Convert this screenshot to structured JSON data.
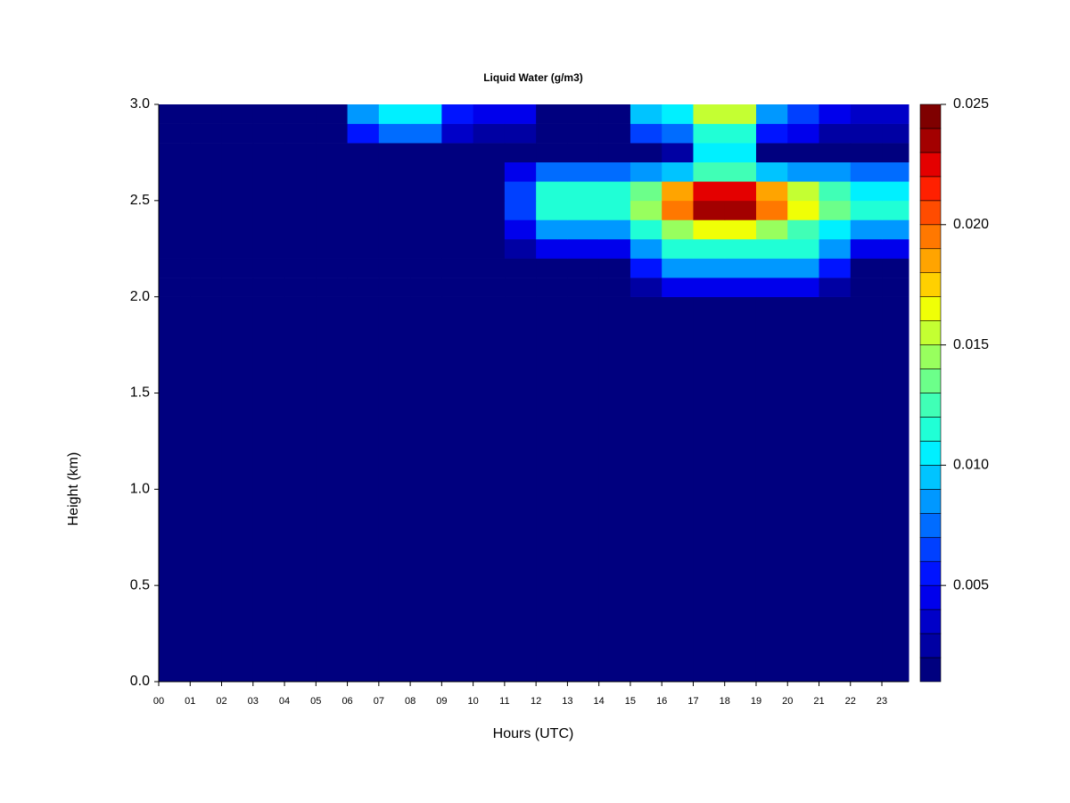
{
  "chart_data": {
    "type": "heatmap",
    "title": "Liquid Water (g/m3)",
    "xlabel": "Hours (UTC)",
    "ylabel": "Height (km)",
    "x": [
      0,
      1,
      2,
      3,
      4,
      5,
      6,
      7,
      8,
      9,
      10,
      11,
      12,
      13,
      14,
      15,
      16,
      17,
      18,
      19,
      20,
      21,
      22,
      23,
      23.85
    ],
    "y": [
      0,
      2.0,
      2.1,
      2.2,
      2.3,
      2.4,
      2.5,
      2.6,
      2.7,
      2.8,
      2.9,
      3.0
    ],
    "xlim": [
      0,
      23.85
    ],
    "ylim": [
      0,
      3
    ],
    "xticks": [
      {
        "value": 0,
        "label": "00"
      },
      {
        "value": 1,
        "label": "01"
      },
      {
        "value": 2,
        "label": "02"
      },
      {
        "value": 3,
        "label": "03"
      },
      {
        "value": 4,
        "label": "04"
      },
      {
        "value": 5,
        "label": "05"
      },
      {
        "value": 6,
        "label": "06"
      },
      {
        "value": 7,
        "label": "07"
      },
      {
        "value": 8,
        "label": "08"
      },
      {
        "value": 9,
        "label": "09"
      },
      {
        "value": 10,
        "label": "10"
      },
      {
        "value": 11,
        "label": "11"
      },
      {
        "value": 12,
        "label": "12"
      },
      {
        "value": 13,
        "label": "13"
      },
      {
        "value": 14,
        "label": "14"
      },
      {
        "value": 15,
        "label": "15"
      },
      {
        "value": 16,
        "label": "16"
      },
      {
        "value": 17,
        "label": "17"
      },
      {
        "value": 18,
        "label": "18"
      },
      {
        "value": 19,
        "label": "19"
      },
      {
        "value": 20,
        "label": "20"
      },
      {
        "value": 21,
        "label": "21"
      },
      {
        "value": 22,
        "label": "22"
      },
      {
        "value": 23,
        "label": "23"
      }
    ],
    "yticks": [
      {
        "value": 0,
        "label": "0.0"
      },
      0.5,
      {
        "value": 1,
        "label": "1.0"
      },
      1.5,
      {
        "value": 2,
        "label": "2.0"
      },
      2.5,
      {
        "value": 3,
        "label": "3.0"
      }
    ],
    "z": [
      [
        0,
        0,
        0,
        0,
        0,
        0,
        0,
        0,
        0,
        0,
        0,
        0,
        0,
        0,
        0,
        0,
        0,
        0,
        0,
        0,
        0,
        0,
        0,
        0
      ],
      [
        0,
        0,
        0,
        0,
        0,
        0,
        0,
        0,
        0,
        0,
        0,
        0,
        0,
        0,
        0,
        0.002,
        0.004,
        0.004,
        0.004,
        0.004,
        0.004,
        0.002,
        0,
        0
      ],
      [
        0,
        0,
        0,
        0,
        0,
        0,
        0,
        0,
        0,
        0,
        0,
        0,
        0,
        0,
        0,
        0.005,
        0.008,
        0.008,
        0.008,
        0.008,
        0.008,
        0.005,
        0,
        0
      ],
      [
        0,
        0,
        0,
        0,
        0,
        0,
        0,
        0,
        0,
        0,
        0,
        0.002,
        0.004,
        0.004,
        0.004,
        0.008,
        0.011,
        0.011,
        0.011,
        0.011,
        0.011,
        0.008,
        0.004,
        0.004
      ],
      [
        0,
        0,
        0,
        0,
        0,
        0,
        0,
        0,
        0,
        0,
        0,
        0.004,
        0.008,
        0.008,
        0.008,
        0.011,
        0.014,
        0.016,
        0.016,
        0.014,
        0.012,
        0.01,
        0.008,
        0.008
      ],
      [
        0,
        0,
        0,
        0,
        0,
        0,
        0,
        0,
        0,
        0,
        0,
        0.006,
        0.011,
        0.011,
        0.011,
        0.014,
        0.019,
        0.023,
        0.023,
        0.019,
        0.016,
        0.013,
        0.011,
        0.011
      ],
      [
        0,
        0,
        0,
        0,
        0,
        0,
        0,
        0,
        0,
        0,
        0,
        0.006,
        0.011,
        0.011,
        0.011,
        0.013,
        0.018,
        0.022,
        0.022,
        0.018,
        0.015,
        0.012,
        0.01,
        0.01
      ],
      [
        0,
        0,
        0,
        0,
        0,
        0,
        0,
        0,
        0,
        0,
        0,
        0.004,
        0.007,
        0.007,
        0.007,
        0.008,
        0.009,
        0.012,
        0.012,
        0.009,
        0.008,
        0.008,
        0.007,
        0.007
      ],
      [
        0,
        0,
        0,
        0,
        0,
        0,
        0,
        0,
        0,
        0,
        0,
        0,
        0,
        0,
        0,
        0,
        0.002,
        0.01,
        0.01,
        0,
        0,
        0,
        0,
        0
      ],
      [
        0,
        0,
        0,
        0,
        0,
        0,
        0.005,
        0.007,
        0.007,
        0.003,
        0.002,
        0.002,
        0,
        0,
        0,
        0.006,
        0.007,
        0.011,
        0.011,
        0.005,
        0.004,
        0.002,
        0.002,
        0.002
      ],
      [
        0,
        0,
        0,
        0,
        0,
        0,
        0.008,
        0.01,
        0.01,
        0.005,
        0.004,
        0.004,
        0,
        0,
        0,
        0.009,
        0.01,
        0.015,
        0.015,
        0.008,
        0.006,
        0.004,
        0.003,
        0.003
      ]
    ],
    "colorbar": {
      "levels": [
        0.001,
        0.002,
        0.003,
        0.004,
        0.005,
        0.006,
        0.007,
        0.008,
        0.009,
        0.01,
        0.011,
        0.012,
        0.013,
        0.014,
        0.015,
        0.016,
        0.017,
        0.018,
        0.019,
        0.02,
        0.021,
        0.022,
        0.023,
        0.024,
        0.025
      ],
      "colors": [
        "#00007f",
        "#0000a3",
        "#0000c8",
        "#0000ec",
        "#0014ff",
        "#0040ff",
        "#006cff",
        "#0098ff",
        "#00c4ff",
        "#00f0ff",
        "#20ffd6",
        "#40ffb6",
        "#6cff8a",
        "#98ff5e",
        "#c4ff32",
        "#f0ff06",
        "#ffd000",
        "#ffa400",
        "#ff7800",
        "#ff4c00",
        "#ff2000",
        "#e40000",
        "#a30000",
        "#7f0000"
      ],
      "ticks": [
        0.005,
        {
          "value": 0.01,
          "label": "0.010"
        },
        0.015,
        {
          "value": 0.02,
          "label": "0.020"
        },
        0.025
      ]
    }
  }
}
